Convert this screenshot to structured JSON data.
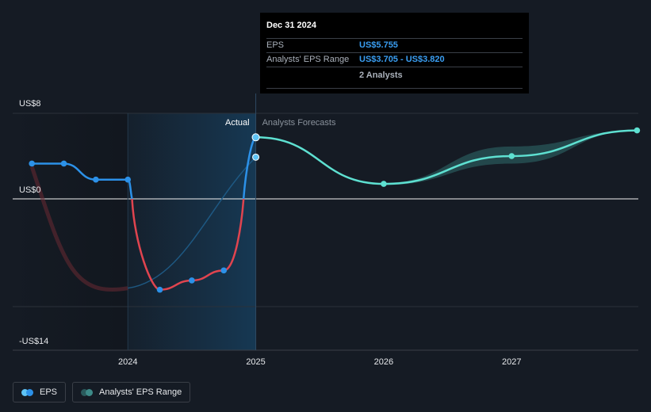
{
  "chart_data": {
    "type": "line",
    "y_axis": {
      "labels": [
        "US$8",
        "US$0",
        "-US$14"
      ],
      "values": [
        8,
        0,
        -14
      ],
      "ylim": [
        -14,
        8
      ]
    },
    "x_axis": {
      "labels": [
        "2024",
        "2025",
        "2026",
        "2027"
      ],
      "xlim": [
        2023.1,
        2027.99
      ]
    },
    "sections": {
      "actual": "Actual",
      "forecast": "Analysts Forecasts"
    },
    "series": [
      {
        "name": "EPS",
        "x": [
          2023.25,
          2023.5,
          2023.75,
          2024.0,
          2024.25,
          2024.5,
          2024.75,
          2025.0
        ],
        "y": [
          3.3,
          3.3,
          1.8,
          1.8,
          -11.8,
          -10.6,
          -9.3,
          5.755
        ]
      },
      {
        "name": "Analysts' EPS Range",
        "x": [
          2025.0,
          2026.0,
          2027.0,
          2027.98
        ],
        "y": [
          5.755,
          1.4,
          4.0,
          6.4
        ],
        "low": [
          5.755,
          1.3,
          3.3,
          6.4
        ],
        "high": [
          5.755,
          1.5,
          4.9,
          6.4
        ]
      }
    ],
    "past_estimate": {
      "x": [
        2023.25,
        2024.0,
        2025.0
      ],
      "y": [
        3.0,
        -11.6,
        3.9
      ]
    },
    "colors": {
      "eps_actual": "#2c91e8",
      "eps_negative": "#e0444f",
      "forecast": "#5ee0d1",
      "forecast_band": "#2a5a5c",
      "shade": "#14324a"
    }
  },
  "tooltip": {
    "date": "Dec 31 2024",
    "rows": [
      {
        "key": "EPS",
        "value": "US$5.755"
      },
      {
        "key": "Analysts' EPS Range",
        "value": "US$3.705 - US$3.820"
      },
      {
        "key": "",
        "value": "2 Analysts"
      }
    ]
  },
  "legend": [
    {
      "label": "EPS",
      "icon": "eps-dots-icon"
    },
    {
      "label": "Analysts' EPS Range",
      "icon": "range-dots-icon"
    }
  ]
}
